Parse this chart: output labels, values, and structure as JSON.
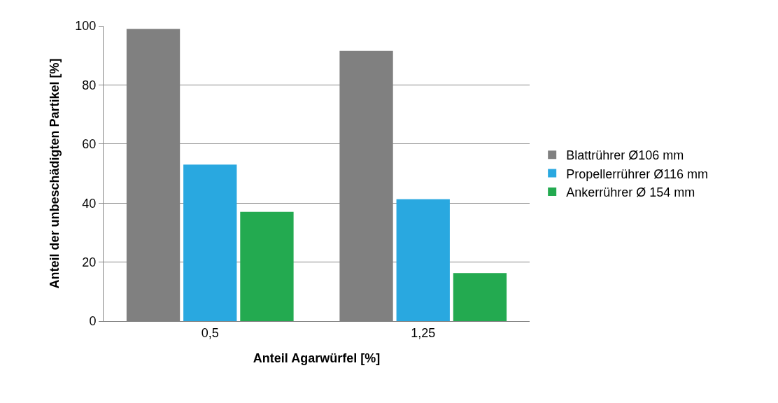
{
  "chart_data": {
    "type": "bar",
    "xlabel": "Anteil Agarwürfel [%]",
    "ylabel": "Anteil der unbeschädigten Partikel [%]",
    "categories": [
      "0,5",
      "1,25"
    ],
    "series": [
      {
        "name": "Blattrührer Ø106 mm",
        "color": "#808080",
        "values": [
          99,
          91.5
        ]
      },
      {
        "name": "Propellerrührer Ø116 mm",
        "color": "#29a8e0",
        "values": [
          53,
          41.3
        ]
      },
      {
        "name": "Ankerrührer Ø 154 mm",
        "color": "#23aa50",
        "values": [
          37,
          16.3
        ]
      }
    ],
    "ylim": [
      0,
      100
    ],
    "yticks": [
      0,
      20,
      40,
      60,
      80,
      100
    ],
    "grid": "y",
    "legend": "right"
  }
}
